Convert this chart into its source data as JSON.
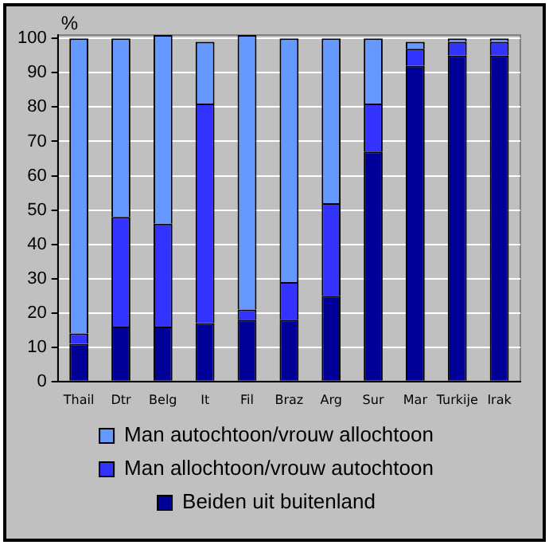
{
  "chart_data": {
    "type": "bar",
    "stacked": true,
    "ylabel": "%",
    "categories": [
      "Thail",
      "Dtr",
      "Belg",
      "It",
      "Fil",
      "Braz",
      "Arg",
      "Sur",
      "Mar",
      "Turkije",
      "Irak"
    ],
    "series": [
      {
        "name": "Beiden uit buitenland",
        "color": "#000099",
        "values": [
          11,
          16,
          16,
          17,
          18,
          18,
          25,
          67,
          92,
          95,
          95
        ]
      },
      {
        "name": "Man allochtoon/vrouw autochtoon",
        "color": "#3333ff",
        "values": [
          3,
          32,
          30,
          64,
          3,
          11,
          27,
          14,
          5,
          4,
          4
        ]
      },
      {
        "name": "Man autochtoon/vrouw allochtoon",
        "color": "#6699ff",
        "values": [
          86,
          52,
          55,
          18,
          80,
          71,
          48,
          19,
          2,
          1,
          1
        ]
      }
    ],
    "ylim": [
      0,
      101
    ],
    "yticks": [
      0,
      10,
      20,
      30,
      40,
      50,
      60,
      70,
      80,
      90,
      100
    ],
    "grid": "y",
    "legend": "bottom"
  }
}
